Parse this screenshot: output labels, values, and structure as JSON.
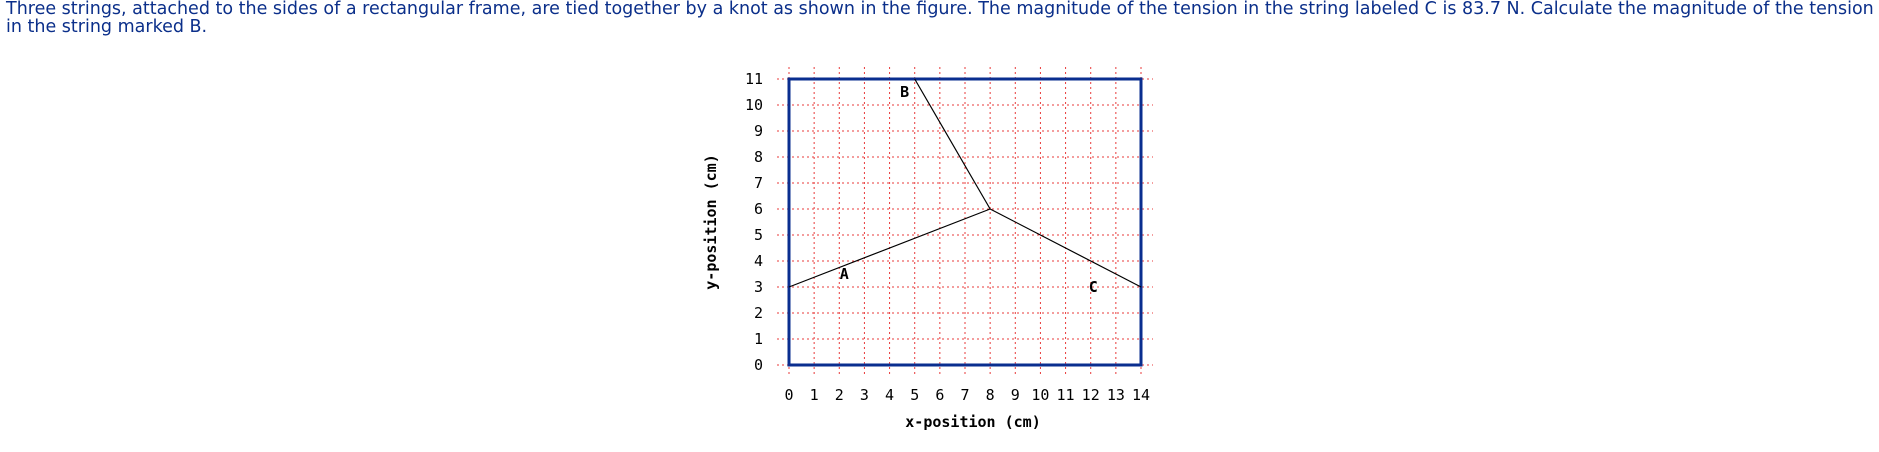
{
  "problem": {
    "text": "Three strings, attached to the sides of a rectangular frame, are tied together by a knot as shown in the figure. The magnitude of the tension in the string labeled C is 83.7 N. Calculate the magnitude of the tension in the string marked B."
  },
  "figure": {
    "xlabel": "x-position (cm)",
    "ylabel": "y-position (cm)",
    "xlim": [
      0,
      14
    ],
    "ylim": [
      0,
      11
    ],
    "x_ticks": [
      "0",
      "1",
      "2",
      "3",
      "4",
      "5",
      "6",
      "7",
      "8",
      "9",
      "10",
      "11",
      "12",
      "13",
      "14"
    ],
    "y_ticks": [
      "0",
      "1",
      "2",
      "3",
      "4",
      "5",
      "6",
      "7",
      "8",
      "9",
      "10",
      "11"
    ],
    "grid": true,
    "colors": {
      "frame": "#0a2e8f",
      "grid": "#e83b3b",
      "string": "#000000",
      "text": "#0b2f8a"
    },
    "knot": {
      "x": 8,
      "y": 6
    },
    "strings": [
      {
        "name": "A",
        "label": "A",
        "end": {
          "x": 0,
          "y": 3
        },
        "label_pos": {
          "x": 2.2,
          "y": 3.5
        }
      },
      {
        "name": "B",
        "label": "B",
        "end": {
          "x": 5,
          "y": 11
        },
        "label_pos": {
          "x": 4.6,
          "y": 10.5
        }
      },
      {
        "name": "C",
        "label": "C",
        "end": {
          "x": 14,
          "y": 3
        },
        "label_pos": {
          "x": 12.1,
          "y": 3.0
        }
      }
    ]
  }
}
